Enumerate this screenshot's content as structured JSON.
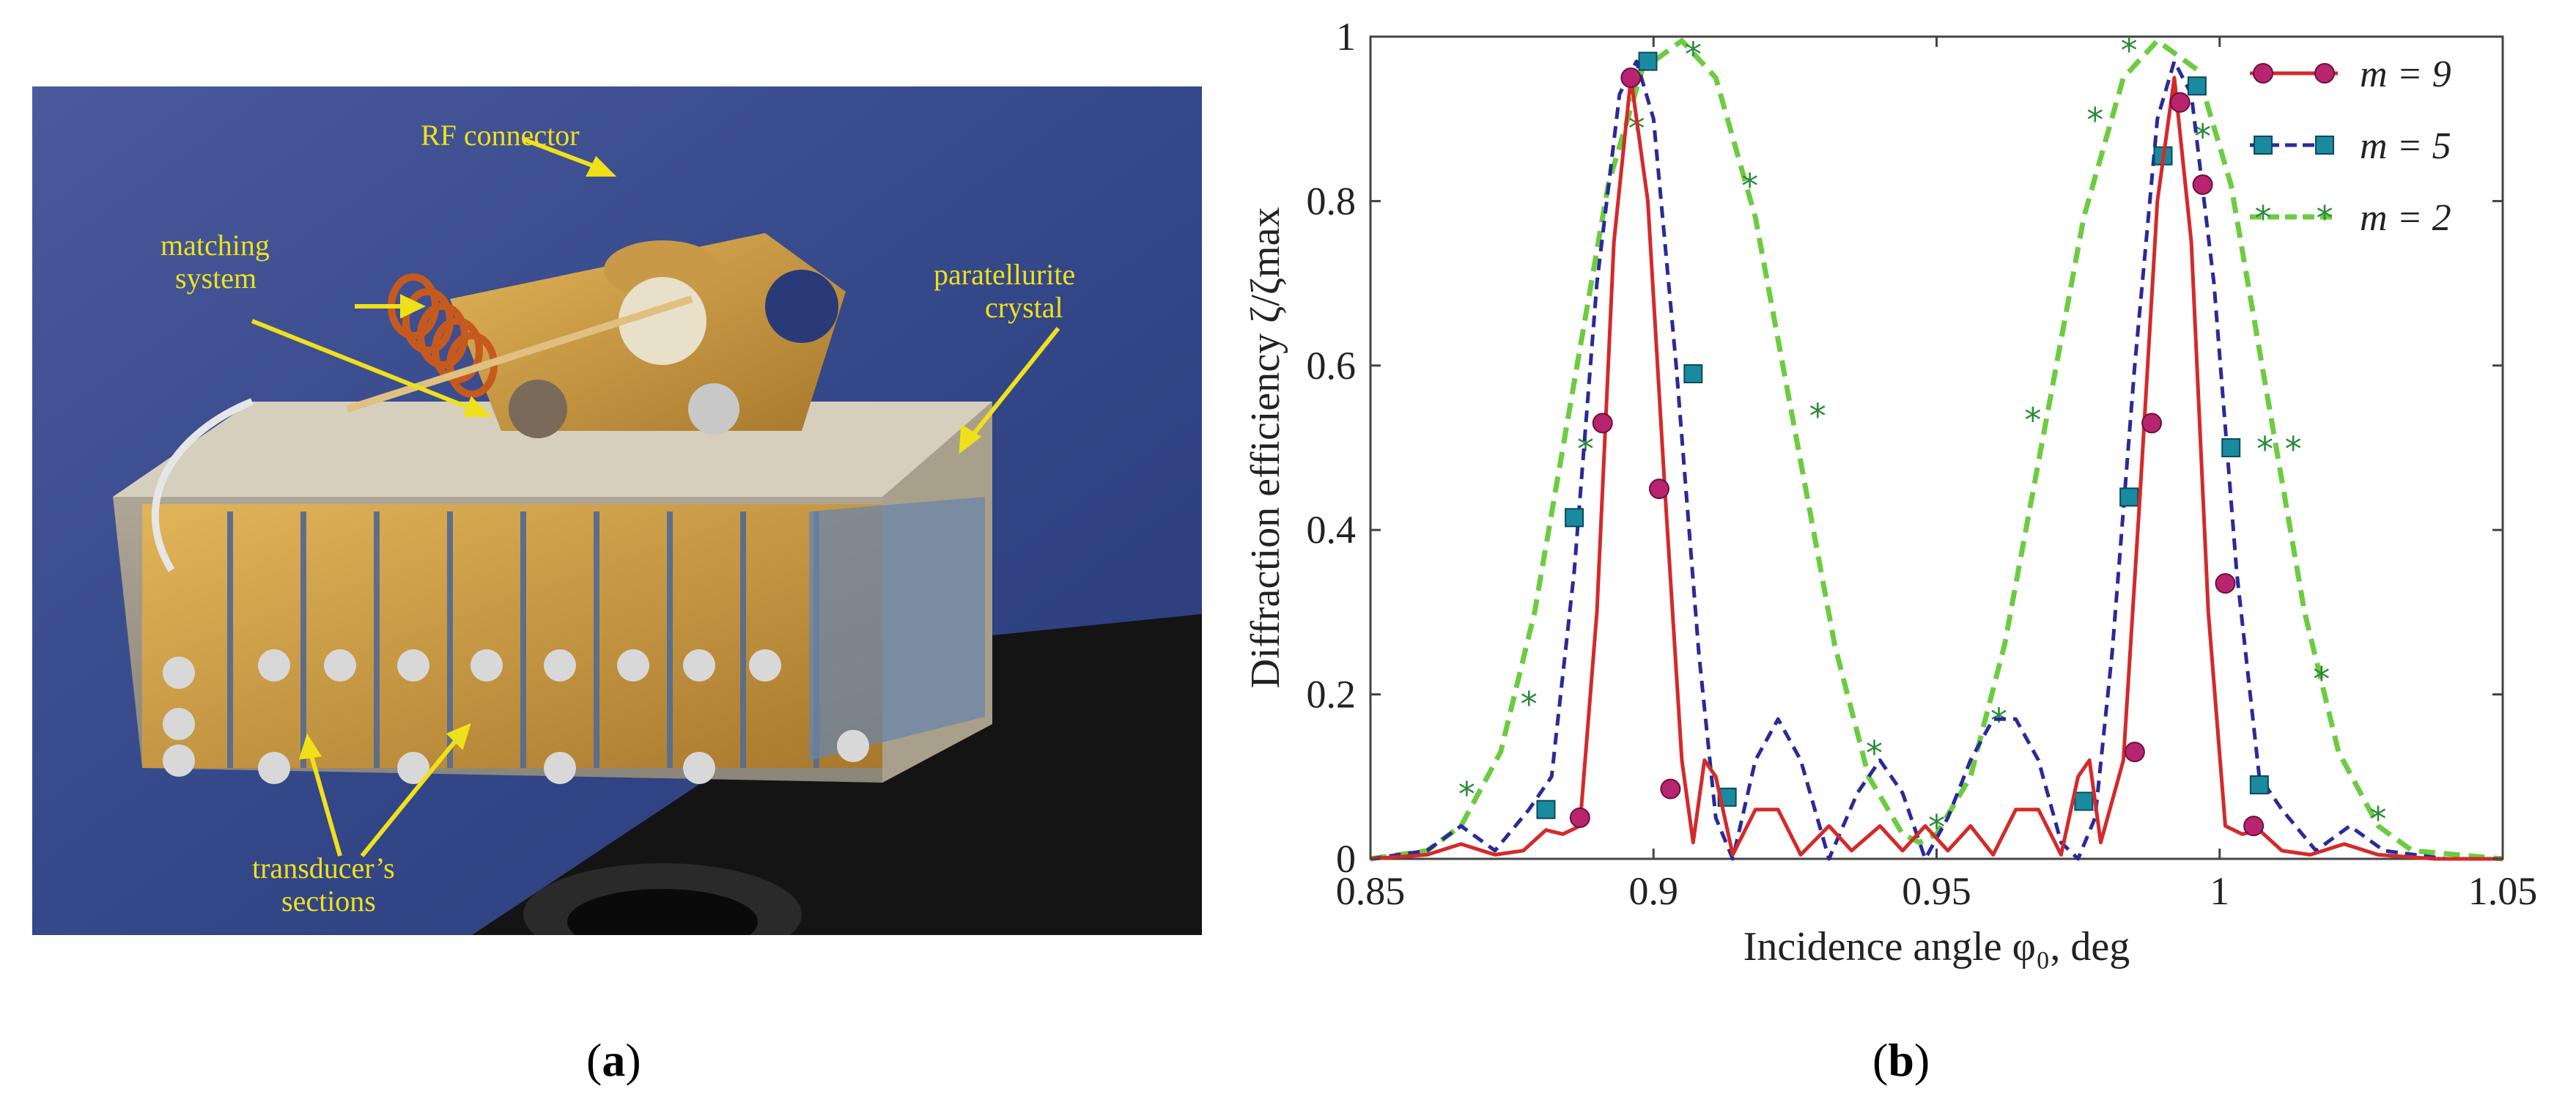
{
  "panel_a": {
    "caption_letter": "a",
    "labels": {
      "rf_connector": "RF connector",
      "matching_line1": "matching",
      "matching_line2": "system",
      "crystal_line1": "paratellurite",
      "crystal_line2": "crystal",
      "transducer_line1": "transducer’s",
      "transducer_line2": "sections"
    },
    "colors": {
      "label": "#f0e01a",
      "background": "#3b4f8c"
    }
  },
  "panel_b": {
    "caption_letter": "b"
  },
  "chart_data": {
    "type": "line",
    "title": "",
    "xlabel": "Incidence angle  φ₀, deg",
    "ylabel": "Diffraction efficiency  ζ/ζmax",
    "xlim": [
      0.85,
      1.05
    ],
    "ylim": [
      0,
      1
    ],
    "xticks": [
      0.85,
      0.9,
      0.95,
      1,
      1.05
    ],
    "xtick_labels": [
      "0.85",
      "0.9",
      "0.95",
      "1",
      "1.05"
    ],
    "yticks": [
      0,
      0.2,
      0.4,
      0.6,
      0.8,
      1
    ],
    "ytick_labels": [
      "0",
      "0.2",
      "0.4",
      "0.6",
      "0.8",
      "1"
    ],
    "grid": false,
    "legend_position": "top-right",
    "series": [
      {
        "name": "m = 9",
        "color": "#d42a2a",
        "line": "solid",
        "marker": "circle",
        "marker_color": "#b8246e",
        "curve": [
          [
            0.85,
            0
          ],
          [
            0.86,
            0.005
          ],
          [
            0.866,
            0.018
          ],
          [
            0.872,
            0.005
          ],
          [
            0.877,
            0.01
          ],
          [
            0.881,
            0.035
          ],
          [
            0.884,
            0.03
          ],
          [
            0.887,
            0.04
          ],
          [
            0.89,
            0.3
          ],
          [
            0.893,
            0.75
          ],
          [
            0.896,
            0.95
          ],
          [
            0.899,
            0.8
          ],
          [
            0.902,
            0.45
          ],
          [
            0.905,
            0.12
          ],
          [
            0.907,
            0.02
          ],
          [
            0.909,
            0.12
          ],
          [
            0.911,
            0.1
          ],
          [
            0.914,
            0.005
          ],
          [
            0.918,
            0.06
          ],
          [
            0.922,
            0.06
          ],
          [
            0.926,
            0.005
          ],
          [
            0.931,
            0.04
          ],
          [
            0.935,
            0.01
          ],
          [
            0.94,
            0.04
          ],
          [
            0.944,
            0.01
          ],
          [
            0.948,
            0.04
          ],
          [
            0.952,
            0.01
          ],
          [
            0.956,
            0.04
          ],
          [
            0.96,
            0.005
          ],
          [
            0.964,
            0.06
          ],
          [
            0.968,
            0.06
          ],
          [
            0.972,
            0.005
          ],
          [
            0.975,
            0.1
          ],
          [
            0.977,
            0.12
          ],
          [
            0.979,
            0.02
          ],
          [
            0.983,
            0.12
          ],
          [
            0.986,
            0.45
          ],
          [
            0.989,
            0.8
          ],
          [
            0.992,
            0.95
          ],
          [
            0.995,
            0.75
          ],
          [
            0.998,
            0.3
          ],
          [
            1.001,
            0.04
          ],
          [
            1.004,
            0.03
          ],
          [
            1.007,
            0.035
          ],
          [
            1.011,
            0.01
          ],
          [
            1.016,
            0.005
          ],
          [
            1.022,
            0.018
          ],
          [
            1.028,
            0.005
          ],
          [
            1.038,
            0
          ],
          [
            1.05,
            0
          ]
        ],
        "markers": [
          [
            0.887,
            0.05
          ],
          [
            0.891,
            0.53
          ],
          [
            0.896,
            0.95
          ],
          [
            0.901,
            0.45
          ],
          [
            0.903,
            0.085
          ],
          [
            0.985,
            0.13
          ],
          [
            0.988,
            0.53
          ],
          [
            0.993,
            0.92
          ],
          [
            0.997,
            0.82
          ],
          [
            1.001,
            0.335
          ],
          [
            1.006,
            0.04
          ]
        ]
      },
      {
        "name": "m = 5",
        "color": "#2a2a9a",
        "line": "dashed",
        "marker": "square",
        "marker_color": "#1a8aa0",
        "curve": [
          [
            0.85,
            0
          ],
          [
            0.86,
            0.01
          ],
          [
            0.866,
            0.04
          ],
          [
            0.872,
            0.01
          ],
          [
            0.878,
            0.06
          ],
          [
            0.882,
            0.1
          ],
          [
            0.886,
            0.35
          ],
          [
            0.89,
            0.7
          ],
          [
            0.894,
            0.93
          ],
          [
            0.897,
            0.97
          ],
          [
            0.9,
            0.9
          ],
          [
            0.904,
            0.6
          ],
          [
            0.908,
            0.25
          ],
          [
            0.911,
            0.05
          ],
          [
            0.914,
            0.0
          ],
          [
            0.918,
            0.12
          ],
          [
            0.922,
            0.17
          ],
          [
            0.926,
            0.12
          ],
          [
            0.931,
            0.0
          ],
          [
            0.936,
            0.08
          ],
          [
            0.94,
            0.12
          ],
          [
            0.944,
            0.08
          ],
          [
            0.948,
            0.0
          ],
          [
            0.952,
            0.05
          ],
          [
            0.956,
            0.12
          ],
          [
            0.96,
            0.17
          ],
          [
            0.964,
            0.17
          ],
          [
            0.968,
            0.12
          ],
          [
            0.972,
            0.02
          ],
          [
            0.975,
            0.0
          ],
          [
            0.978,
            0.05
          ],
          [
            0.981,
            0.25
          ],
          [
            0.985,
            0.6
          ],
          [
            0.989,
            0.9
          ],
          [
            0.992,
            0.97
          ],
          [
            0.995,
            0.93
          ],
          [
            0.999,
            0.7
          ],
          [
            1.003,
            0.35
          ],
          [
            1.007,
            0.1
          ],
          [
            1.011,
            0.06
          ],
          [
            1.017,
            0.01
          ],
          [
            1.023,
            0.04
          ],
          [
            1.029,
            0.01
          ],
          [
            1.04,
            0
          ],
          [
            1.05,
            0
          ]
        ],
        "markers": [
          [
            0.881,
            0.06
          ],
          [
            0.886,
            0.415
          ],
          [
            0.899,
            0.97
          ],
          [
            0.907,
            0.59
          ],
          [
            0.913,
            0.075
          ],
          [
            0.976,
            0.07
          ],
          [
            0.984,
            0.44
          ],
          [
            0.99,
            0.855
          ],
          [
            0.996,
            0.94
          ],
          [
            1.002,
            0.5
          ],
          [
            1.007,
            0.09
          ]
        ]
      },
      {
        "name": "m = 2",
        "color": "#6ccc40",
        "line": "dashed",
        "marker": "star",
        "marker_color": "#2a8a3a",
        "curve": [
          [
            0.85,
            0
          ],
          [
            0.86,
            0.01
          ],
          [
            0.866,
            0.04
          ],
          [
            0.873,
            0.13
          ],
          [
            0.879,
            0.3
          ],
          [
            0.886,
            0.58
          ],
          [
            0.892,
            0.82
          ],
          [
            0.898,
            0.96
          ],
          [
            0.905,
            0.995
          ],
          [
            0.911,
            0.95
          ],
          [
            0.918,
            0.78
          ],
          [
            0.925,
            0.52
          ],
          [
            0.932,
            0.26
          ],
          [
            0.938,
            0.1
          ],
          [
            0.944,
            0.03
          ],
          [
            0.947,
            0.02
          ],
          [
            0.95,
            0.03
          ],
          [
            0.956,
            0.1
          ],
          [
            0.962,
            0.26
          ],
          [
            0.969,
            0.52
          ],
          [
            0.976,
            0.78
          ],
          [
            0.983,
            0.95
          ],
          [
            0.989,
            0.995
          ],
          [
            0.996,
            0.96
          ],
          [
            1.002,
            0.82
          ],
          [
            1.008,
            0.58
          ],
          [
            1.015,
            0.3
          ],
          [
            1.021,
            0.13
          ],
          [
            1.028,
            0.04
          ],
          [
            1.034,
            0.01
          ],
          [
            1.05,
            0
          ]
        ],
        "markers": [
          [
            0.867,
            0.08
          ],
          [
            0.878,
            0.19
          ],
          [
            0.888,
            0.5
          ],
          [
            0.897,
            0.89
          ],
          [
            0.907,
            0.98
          ],
          [
            0.917,
            0.82
          ],
          [
            0.929,
            0.54
          ],
          [
            0.939,
            0.13
          ],
          [
            0.95,
            0.04
          ],
          [
            0.961,
            0.17
          ],
          [
            0.967,
            0.535
          ],
          [
            0.978,
            0.9
          ],
          [
            0.984,
            0.985
          ],
          [
            0.997,
            0.88
          ],
          [
            1.008,
            0.5
          ],
          [
            1.013,
            0.5
          ],
          [
            1.018,
            0.22
          ],
          [
            1.028,
            0.05
          ]
        ]
      }
    ]
  }
}
